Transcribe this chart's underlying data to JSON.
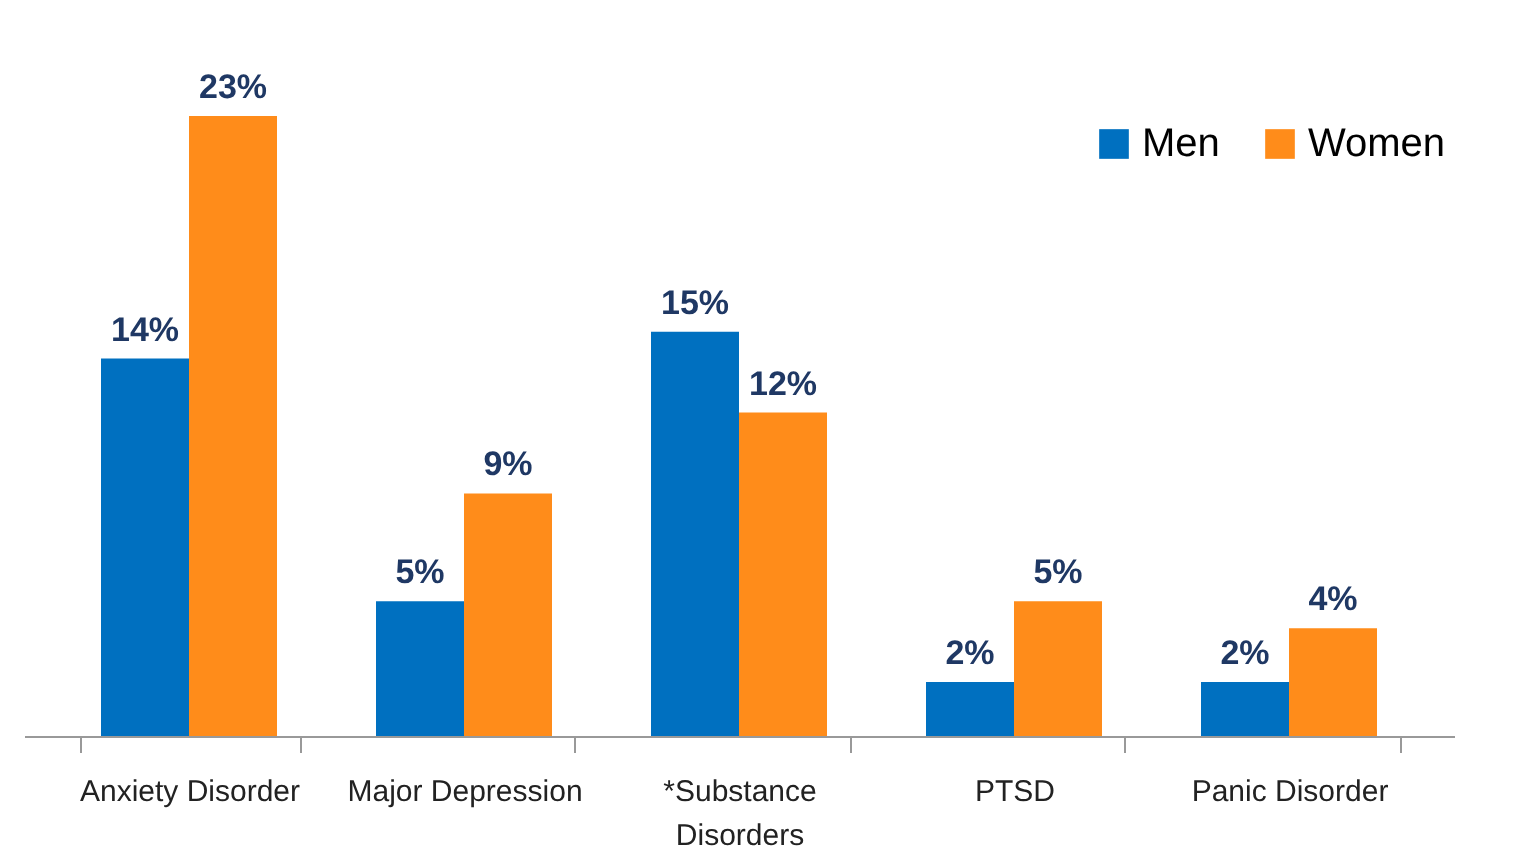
{
  "chart_data": {
    "type": "bar",
    "categories": [
      "Anxiety Disorder",
      "Major Depression",
      "*Substance Disorders",
      "PTSD",
      "Panic Disorder"
    ],
    "series": [
      {
        "name": "Men",
        "color": "#0070c0",
        "values": [
          14,
          5,
          15,
          2,
          2
        ],
        "value_labels": [
          "14%",
          "5%",
          "15%",
          "2%",
          "2%"
        ]
      },
      {
        "name": "Women",
        "color": "#ff8c1a",
        "values": [
          23,
          9,
          12,
          5,
          4
        ],
        "value_labels": [
          "23%",
          "9%",
          "12%",
          "5%",
          "4%"
        ]
      }
    ],
    "legend": "top right",
    "grid": false
  }
}
